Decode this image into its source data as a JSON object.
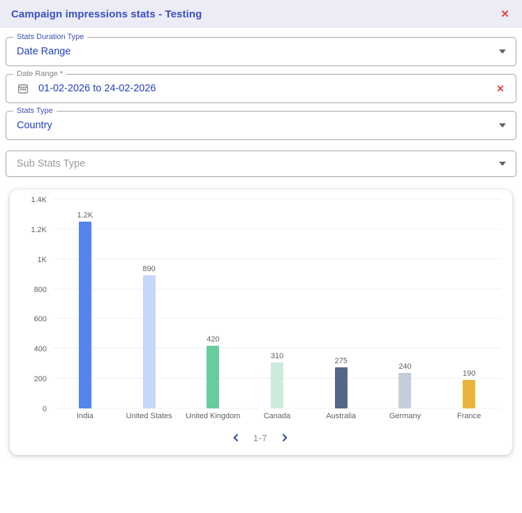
{
  "modal": {
    "title": "Campaign impressions stats - Testing",
    "close_icon": "✕"
  },
  "form": {
    "stats_duration_type": {
      "label": "Stats Duration Type",
      "value": "Date Range"
    },
    "date_range": {
      "label": "Date Range *",
      "value": "01-02-2026 to 24-02-2026",
      "clear_icon": "✕"
    },
    "stats_type": {
      "label": "Stats Type",
      "value": "Country"
    },
    "sub_stats_type": {
      "placeholder": "Sub Stats Type"
    }
  },
  "pagination": {
    "prev_icon": "chevron-left",
    "range_label": "1-7",
    "next_icon": "chevron-right"
  },
  "colors": {
    "header_bg": "#ebecf6",
    "title_blue": "#3b4fc1",
    "value_blue": "#2140bd",
    "label_blue": "#3f51b5",
    "error_red": "#e64438",
    "pager_blue": "#3949ab"
  },
  "chart_data": {
    "type": "bar",
    "title": "",
    "xlabel": "",
    "ylabel": "",
    "categories": [
      "India",
      "United States",
      "United Kingdom",
      "Canada",
      "Australia",
      "Germany",
      "France"
    ],
    "values": [
      1250,
      890,
      420,
      310,
      275,
      240,
      190
    ],
    "value_labels": [
      "1.2K",
      "890",
      "420",
      "310",
      "275",
      "240",
      "190"
    ],
    "bar_colors": [
      "#5285ee",
      "#c6d7f7",
      "#67cd9c",
      "#cdebdd",
      "#556687",
      "#c6cdda",
      "#e9b43a"
    ],
    "ylim": [
      0,
      1400
    ],
    "yticks": [
      0,
      200,
      400,
      600,
      800,
      1000,
      1200,
      1400
    ],
    "ytick_labels": [
      "0",
      "200",
      "400",
      "600",
      "800",
      "1K",
      "1.2K",
      "1.4K"
    ],
    "grid": true,
    "legend": false
  }
}
